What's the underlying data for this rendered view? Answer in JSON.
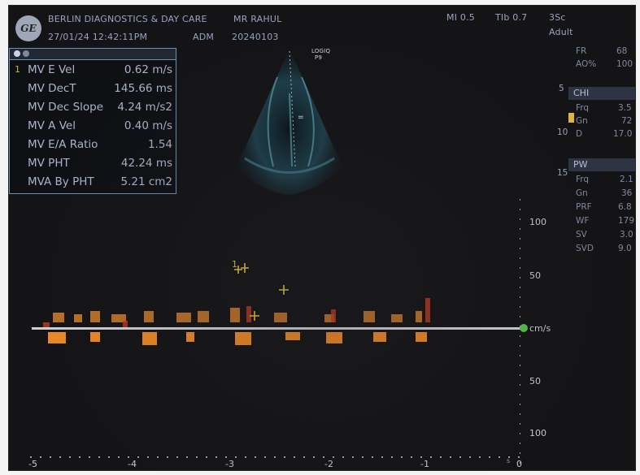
{
  "header": {
    "institution": "BERLIN DIAGNOSTICS & DAY CARE",
    "patient": "MR RAHUL",
    "datetime": "27/01/24 12:42:11PM",
    "operator": "ADM",
    "study_id": "20240103",
    "mi": "MI 0.5",
    "tib": "TIb 0.7",
    "probe": "3Sc",
    "preset": "Adult",
    "logo_text": "GE"
  },
  "measurements": {
    "rows": [
      {
        "idx": "1",
        "label": "MV E Vel",
        "value": "0.62 m/s"
      },
      {
        "idx": "",
        "label": "MV DecT",
        "value": "145.66 ms"
      },
      {
        "idx": "",
        "label": "MV Dec Slope",
        "value": "4.24 m/s2"
      },
      {
        "idx": "",
        "label": "MV A Vel",
        "value": "0.40 m/s"
      },
      {
        "idx": "",
        "label": "MV E/A Ratio",
        "value": "1.54"
      },
      {
        "idx": "",
        "label": "MV PHT",
        "value": "42.24 ms"
      },
      {
        "idx": "",
        "label": "MVA By PHT",
        "value": "5.21 cm2"
      }
    ]
  },
  "image_label": {
    "line1": "LOGIQ",
    "line2": "P9"
  },
  "right_panel": {
    "general": [
      {
        "key": "FR",
        "val": "68"
      },
      {
        "key": "AO%",
        "val": "100"
      }
    ],
    "chi_title": "CHI",
    "chi": [
      {
        "key": "Frq",
        "val": "3.5"
      },
      {
        "key": "Gn",
        "val": "72"
      },
      {
        "key": "D",
        "val": "17.0"
      }
    ],
    "pw_title": "PW",
    "pw": [
      {
        "key": "Frq",
        "val": "2.1"
      },
      {
        "key": "Gn",
        "val": "36"
      },
      {
        "key": "PRF",
        "val": "6.8"
      },
      {
        "key": "WF",
        "val": "179"
      },
      {
        "key": "SV",
        "val": "3.0"
      },
      {
        "key": "SVD",
        "val": "9.0"
      }
    ],
    "depth_marks": [
      "5",
      "10",
      "15"
    ]
  },
  "doppler": {
    "velocity_scale": [
      "100",
      "50",
      "cm/s",
      "50",
      "100"
    ],
    "time_scale": [
      "-5",
      "-4",
      "-3",
      "-2",
      "-1",
      "0"
    ],
    "time_unit": "s",
    "caliper_index": "1"
  }
}
